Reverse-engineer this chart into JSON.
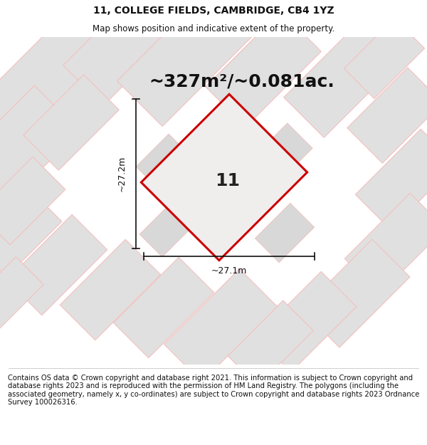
{
  "title": "11, COLLEGE FIELDS, CAMBRIDGE, CB4 1YZ",
  "subtitle": "Map shows position and indicative extent of the property.",
  "area_text": "~327m²/~0.081ac.",
  "plot_number": "11",
  "dim_width": "~27.1m",
  "dim_height": "~27.2m",
  "footer": "Contains OS data © Crown copyright and database right 2021. This information is subject to Crown copyright and database rights 2023 and is reproduced with the permission of HM Land Registry. The polygons (including the associated geometry, namely x, y co-ordinates) are subject to Crown copyright and database rights 2023 Ordnance Survey 100026316.",
  "bg_color": "#ffffff",
  "map_bg": "#ffffff",
  "parcel_fill": "#e0e0e0",
  "parcel_edge": "#f5c0c0",
  "inner_parcel_fill": "#d8d8d8",
  "plot_fill": "#f0eded",
  "plot_edge": "#cc0000",
  "header_bg": "#ffffff",
  "footer_bg": "#ffffff",
  "title_fontsize": 10,
  "subtitle_fontsize": 8.5,
  "area_fontsize": 18,
  "plot_label_fontsize": 18,
  "dim_fontsize": 9,
  "footer_fontsize": 7.2
}
